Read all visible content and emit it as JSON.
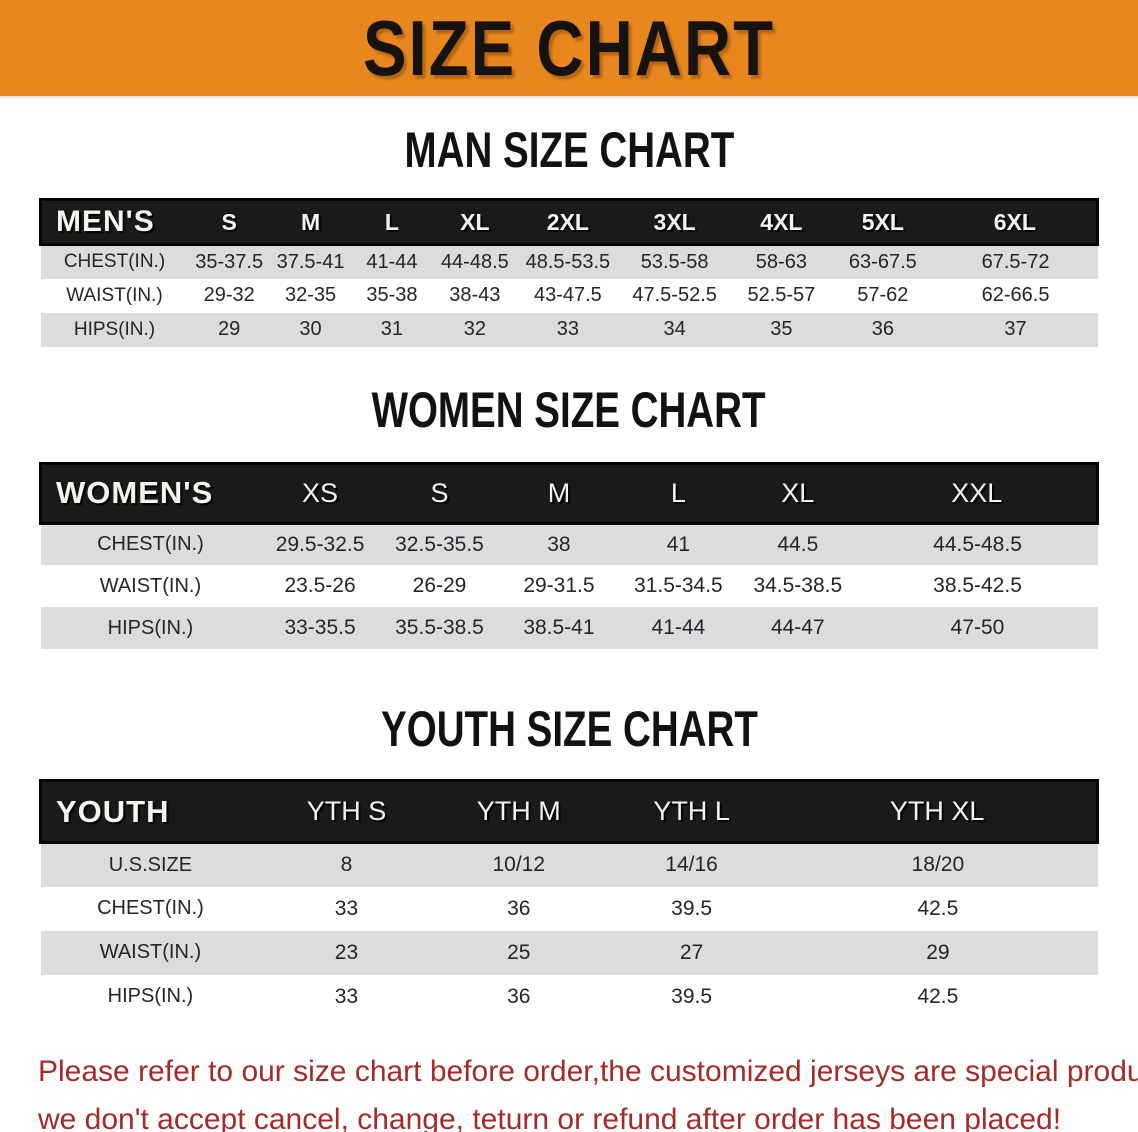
{
  "banner": {
    "title": "SIZE CHART",
    "bg_color": "#E8871E",
    "text_color": "#151210"
  },
  "sections": [
    {
      "heading": "MAN SIZE CHART",
      "group_label": "MEN'S",
      "columns": [
        "S",
        "M",
        "L",
        "XL",
        "2XL",
        "3XL",
        "4XL",
        "5XL",
        "6XL"
      ],
      "rows": [
        {
          "label": "CHEST(IN.)",
          "values": [
            "35-37.5",
            "37.5-41",
            "41-44",
            "44-48.5",
            "48.5-53.5",
            "53.5-58",
            "58-63",
            "63-67.5",
            "67.5-72"
          ]
        },
        {
          "label": "WAIST(IN.)",
          "values": [
            "29-32",
            "32-35",
            "35-38",
            "38-43",
            "43-47.5",
            "47.5-52.5",
            "52.5-57",
            "57-62",
            "62-66.5"
          ]
        },
        {
          "label": "HIPS(IN.)",
          "values": [
            "29",
            "30",
            "31",
            "32",
            "33",
            "34",
            "35",
            "36",
            "37"
          ]
        }
      ]
    },
    {
      "heading": "WOMEN SIZE CHART",
      "group_label": "WOMEN'S",
      "columns": [
        "XS",
        "S",
        "M",
        "L",
        "XL",
        "XXL"
      ],
      "rows": [
        {
          "label": "CHEST(IN.)",
          "values": [
            "29.5-32.5",
            "32.5-35.5",
            "38",
            "41",
            "44.5",
            "44.5-48.5"
          ]
        },
        {
          "label": "WAIST(IN.)",
          "values": [
            "23.5-26",
            "26-29",
            "29-31.5",
            "31.5-34.5",
            "34.5-38.5",
            "38.5-42.5"
          ]
        },
        {
          "label": "HIPS(IN.)",
          "values": [
            "33-35.5",
            "35.5-38.5",
            "38.5-41",
            "41-44",
            "44-47",
            "47-50"
          ]
        }
      ]
    },
    {
      "heading": "YOUTH SIZE CHART",
      "group_label": "YOUTH",
      "columns": [
        "YTH S",
        "YTH M",
        "YTH L",
        "YTH XL"
      ],
      "rows": [
        {
          "label": "U.S.SIZE",
          "values": [
            "8",
            "10/12",
            "14/16",
            "18/20"
          ]
        },
        {
          "label": "CHEST(IN.)",
          "values": [
            "33",
            "36",
            "39.5",
            "42.5"
          ]
        },
        {
          "label": "WAIST(IN.)",
          "values": [
            "23",
            "25",
            "27",
            "29"
          ]
        },
        {
          "label": "HIPS(IN.)",
          "values": [
            "33",
            "36",
            "39.5",
            "42.5"
          ]
        }
      ]
    }
  ],
  "footnote": {
    "line1": "Please refer to our size chart before order,the customized jerseys are special products,",
    "line2": "we don't accept cancel, change, teturn or refund after order has been placed!",
    "color": "#A42B28"
  },
  "colors": {
    "banner_orange": "#E8871E",
    "header_black": "#1c1a19",
    "stripe_gray": "#dcdcdd",
    "footnote_red": "#A42B28"
  }
}
